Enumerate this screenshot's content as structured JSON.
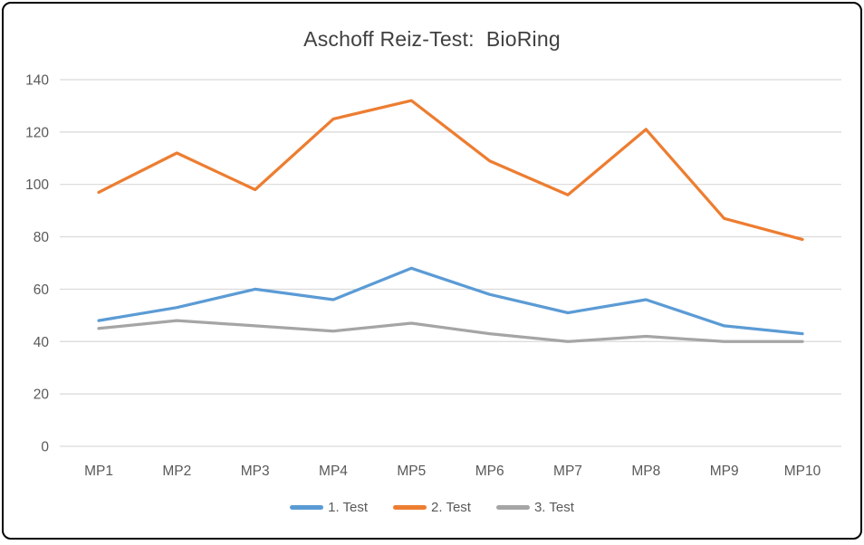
{
  "title": "Aschoff Reiz-Test:  BioRing",
  "chart_data": {
    "type": "line",
    "categories": [
      "MP1",
      "MP2",
      "MP3",
      "MP4",
      "MP5",
      "MP6",
      "MP7",
      "MP8",
      "MP9",
      "MP10"
    ],
    "series": [
      {
        "name": "1. Test",
        "color": "#5B9BD5",
        "values": [
          48,
          53,
          60,
          56,
          68,
          58,
          51,
          56,
          46,
          43
        ]
      },
      {
        "name": "2. Test",
        "color": "#ED7D31",
        "values": [
          97,
          112,
          98,
          125,
          132,
          109,
          96,
          121,
          87,
          79
        ]
      },
      {
        "name": "3. Test",
        "color": "#A5A5A5",
        "values": [
          45,
          48,
          46,
          44,
          47,
          43,
          40,
          42,
          40,
          40
        ]
      }
    ],
    "title": "Aschoff Reiz-Test:  BioRing",
    "xlabel": "",
    "ylabel": "",
    "ylim": [
      0,
      140
    ],
    "yticks": [
      0,
      20,
      40,
      60,
      80,
      100,
      120,
      140
    ],
    "grid": true,
    "legend_position": "bottom"
  },
  "colors": {
    "series_blue": "#5B9BD5",
    "series_orange": "#ED7D31",
    "series_gray": "#A5A5A5",
    "gridline": "#D9D9D9",
    "axis_text": "#595959",
    "title_text": "#404040",
    "border": "#000000",
    "background": "#FFFFFF"
  }
}
